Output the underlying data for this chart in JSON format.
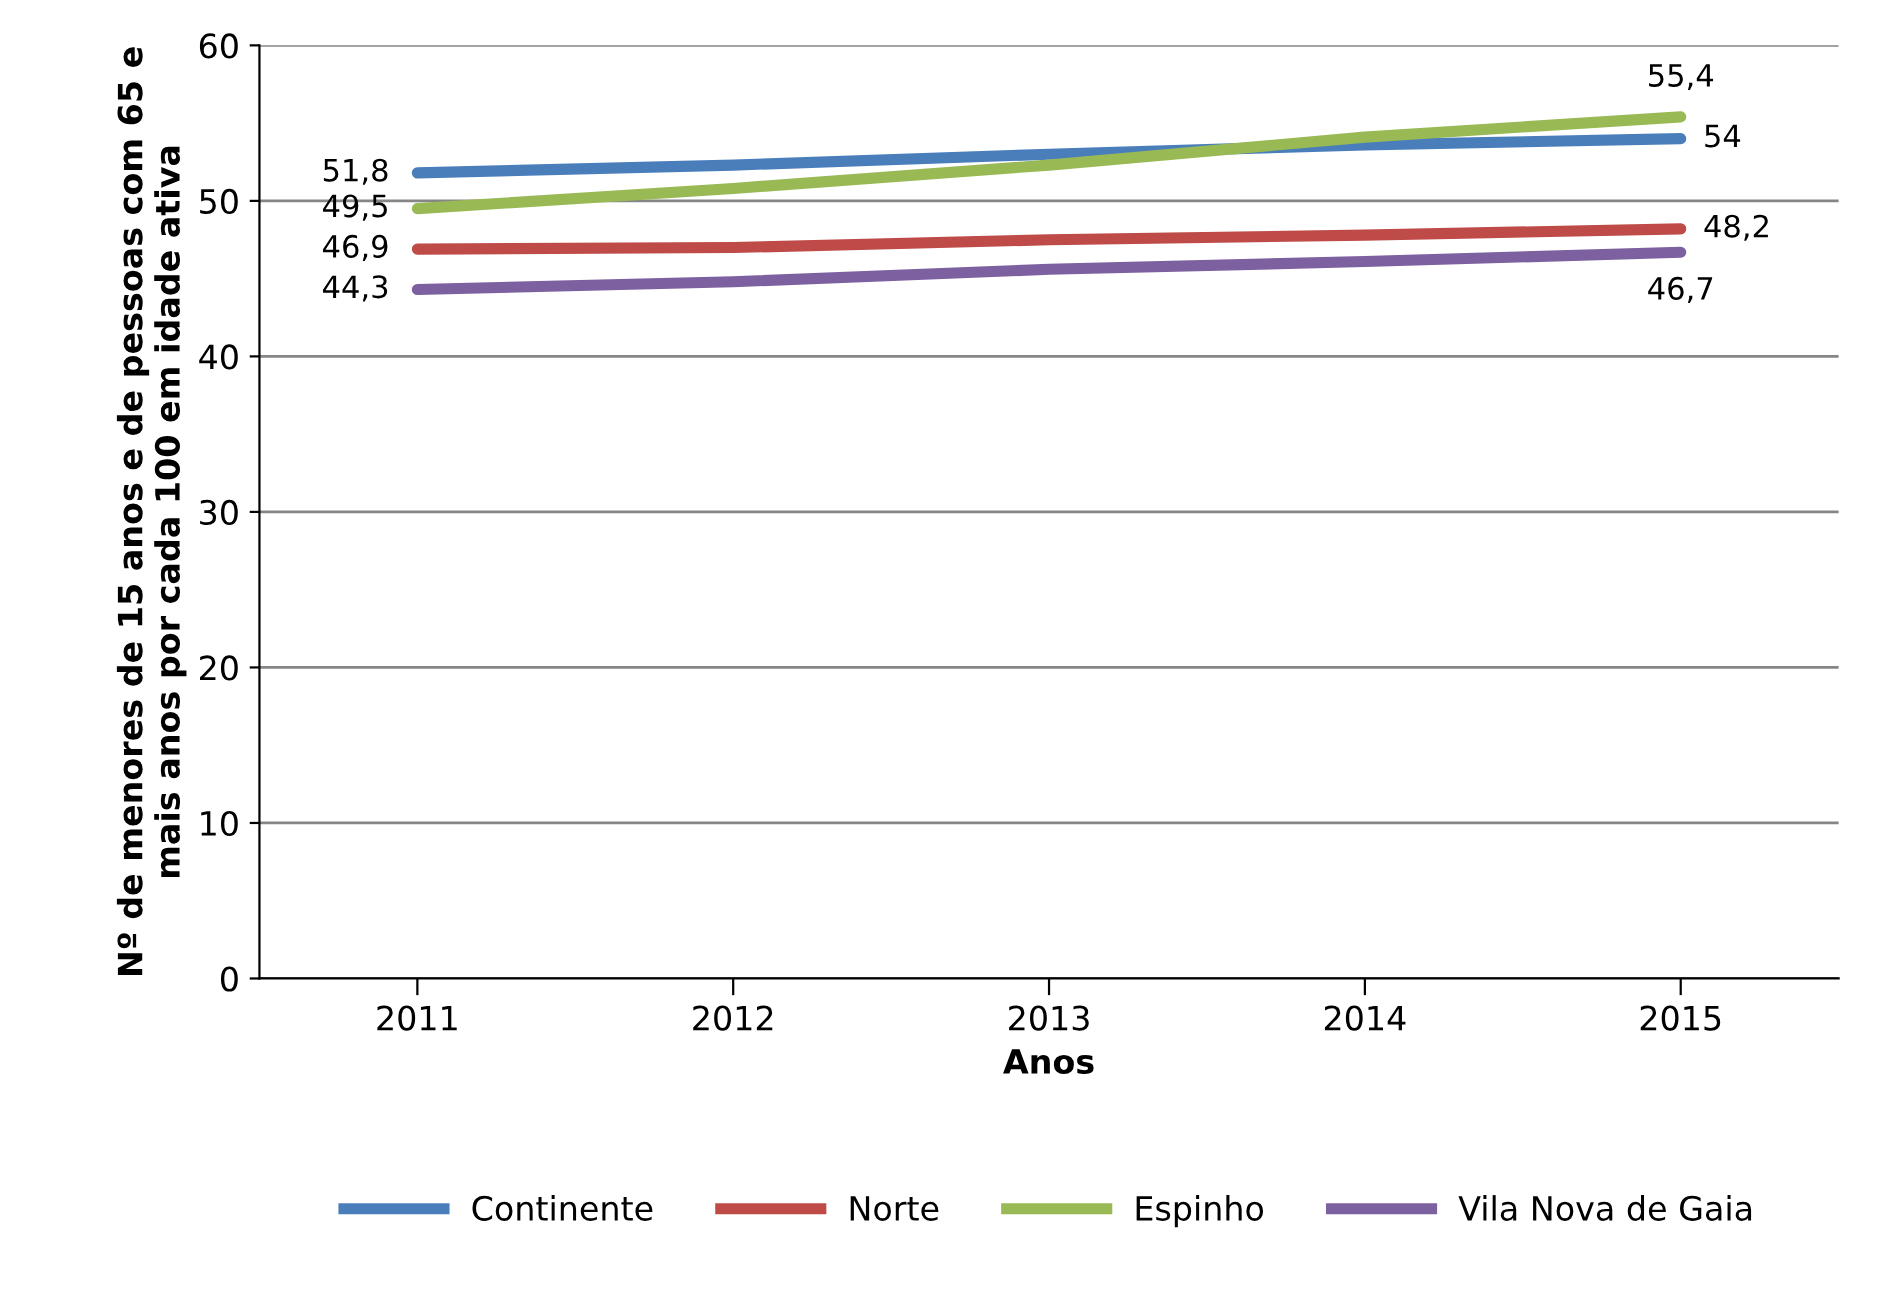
{
  "chart_data": {
    "type": "line",
    "xlabel": "Anos",
    "ylabel": "Nº de menores de 15 anos e de pessoas com 65 e mais anos por cada 100 em idade ativa",
    "categories": [
      "2011",
      "2012",
      "2013",
      "2014",
      "2015"
    ],
    "series": [
      {
        "name": "Continente",
        "color": "#4a7ebb",
        "values": [
          51.8,
          52.3,
          53.0,
          53.6,
          54
        ],
        "value_labels": [
          "51,8",
          null,
          null,
          null,
          "54"
        ]
      },
      {
        "name": "Norte",
        "color": "#be4b48",
        "values": [
          46.9,
          47.0,
          47.5,
          47.8,
          48.2
        ],
        "value_labels": [
          "46,9",
          null,
          null,
          null,
          "48,2"
        ]
      },
      {
        "name": "Espinho",
        "color": "#98b954",
        "values": [
          49.5,
          50.8,
          52.3,
          54.1,
          55.4
        ],
        "value_labels": [
          "49,5",
          null,
          null,
          null,
          "55,4"
        ]
      },
      {
        "name": "Vila Nova de Gaia",
        "color": "#7d60a0",
        "values": [
          44.3,
          44.8,
          45.6,
          46.1,
          46.7
        ],
        "value_labels": [
          "44,3",
          null,
          null,
          null,
          "46,7"
        ]
      }
    ],
    "ylim": [
      0,
      60
    ],
    "yticks": [
      0,
      10,
      20,
      30,
      40,
      50,
      60
    ],
    "grid": "y",
    "legend": "bottom",
    "marker": "none",
    "line_style": "solid"
  }
}
